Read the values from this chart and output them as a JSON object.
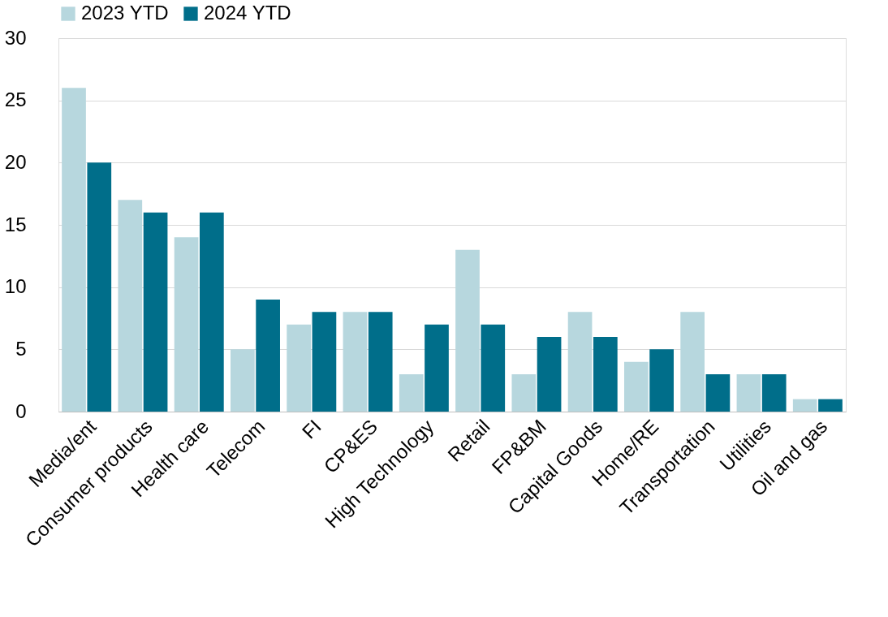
{
  "chart_data": {
    "type": "bar",
    "categories": [
      "Media/ent",
      "Consumer products",
      "Health care",
      "Telecom",
      "FI",
      "CP&ES",
      "High Technology",
      "Retail",
      "FP&BM",
      "Capital Goods",
      "Home/RE",
      "Transportation",
      "Utilities",
      "Oil and gas"
    ],
    "series": [
      {
        "name": "2023 YTD",
        "color": "#b7d7de",
        "values": [
          26,
          17,
          14,
          5,
          7,
          8,
          3,
          13,
          3,
          8,
          4,
          8,
          3,
          1
        ]
      },
      {
        "name": "2024 YTD",
        "color": "#006e8a",
        "values": [
          20,
          16,
          16,
          9,
          8,
          8,
          7,
          7,
          6,
          6,
          5,
          3,
          3,
          1
        ]
      }
    ],
    "ylim": [
      0,
      30
    ],
    "yticks": [
      0,
      5,
      10,
      15,
      20,
      25,
      30
    ],
    "grid": "y",
    "legend": "top"
  }
}
